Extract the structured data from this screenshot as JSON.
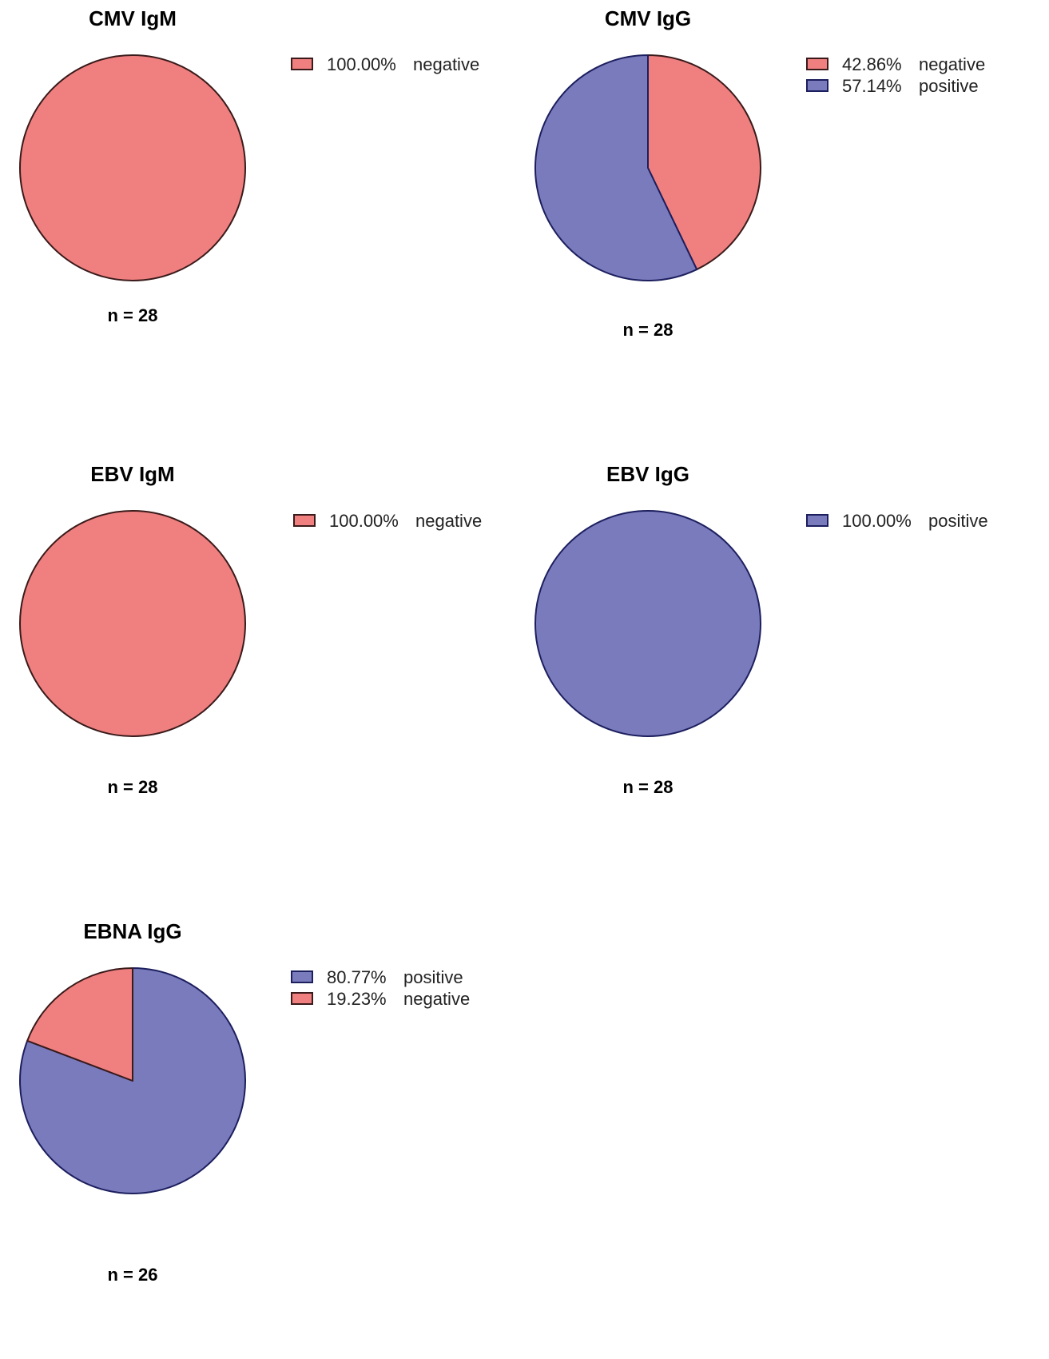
{
  "colors": {
    "negative": "#f08080",
    "positive": "#7a7bbd",
    "outline_negative": "#3a1a1a",
    "outline_positive": "#1c1f5e"
  },
  "chart_data": [
    {
      "type": "pie",
      "title": "CMV IgM",
      "n_label": "n = 28",
      "slices": [
        {
          "label": "negative",
          "percent_label": "100.00%",
          "value": 100.0,
          "color": "#f08080"
        }
      ],
      "legend": [
        {
          "percent_label": "100.00%",
          "label": "negative",
          "color": "#f08080"
        }
      ]
    },
    {
      "type": "pie",
      "title": "CMV IgG",
      "n_label": "n = 28",
      "slices": [
        {
          "label": "negative",
          "percent_label": "42.86%",
          "value": 42.86,
          "color": "#f08080"
        },
        {
          "label": "positive",
          "percent_label": "57.14%",
          "value": 57.14,
          "color": "#7a7bbd"
        }
      ],
      "legend": [
        {
          "percent_label": "42.86%",
          "label": "negative",
          "color": "#f08080"
        },
        {
          "percent_label": "57.14%",
          "label": "positive",
          "color": "#7a7bbd"
        }
      ]
    },
    {
      "type": "pie",
      "title": "EBV IgM",
      "n_label": "n = 28",
      "slices": [
        {
          "label": "negative",
          "percent_label": "100.00%",
          "value": 100.0,
          "color": "#f08080"
        }
      ],
      "legend": [
        {
          "percent_label": "100.00%",
          "label": "negative",
          "color": "#f08080"
        }
      ]
    },
    {
      "type": "pie",
      "title": "EBV IgG",
      "n_label": "n = 28",
      "slices": [
        {
          "label": "positive",
          "percent_label": "100.00%",
          "value": 100.0,
          "color": "#7a7bbd"
        }
      ],
      "legend": [
        {
          "percent_label": "100.00%",
          "label": "positive",
          "color": "#7a7bbd"
        }
      ]
    },
    {
      "type": "pie",
      "title": "EBNA IgG",
      "n_label": "n = 26",
      "slices": [
        {
          "label": "positive",
          "percent_label": "80.77%",
          "value": 80.77,
          "color": "#7a7bbd"
        },
        {
          "label": "negative",
          "percent_label": "19.23%",
          "value": 19.23,
          "color": "#f08080"
        }
      ],
      "legend": [
        {
          "percent_label": "80.77%",
          "label": "positive",
          "color": "#7a7bbd"
        },
        {
          "percent_label": "19.23%",
          "label": "negative",
          "color": "#f08080"
        }
      ]
    }
  ]
}
